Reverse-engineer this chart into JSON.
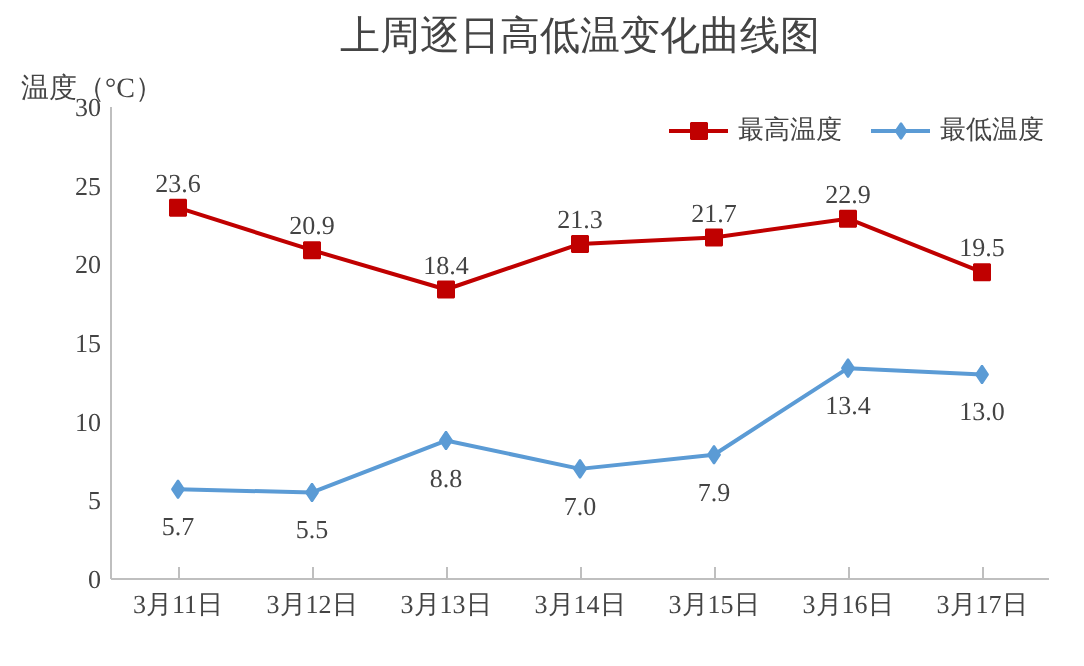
{
  "chart_data": {
    "type": "line",
    "title": "上周逐日高低温变化曲线图",
    "ylabel": "温度（°C）",
    "categories": [
      "3月11日",
      "3月12日",
      "3月13日",
      "3月14日",
      "3月15日",
      "3月16日",
      "3月17日"
    ],
    "series": [
      {
        "name": "最高温度",
        "color": "#c00000",
        "marker": "square",
        "values": [
          23.6,
          20.9,
          18.4,
          21.3,
          21.7,
          22.9,
          19.5
        ],
        "value_labels": [
          "23.6",
          "20.9",
          "18.4",
          "21.3",
          "21.7",
          "22.9",
          "19.5"
        ]
      },
      {
        "name": "最低温度",
        "color": "#5b9bd5",
        "marker": "diamond",
        "values": [
          5.7,
          5.5,
          8.8,
          7.0,
          7.9,
          13.4,
          13.0
        ],
        "value_labels": [
          "5.7",
          "5.5",
          "8.8",
          "7.0",
          "7.9",
          "13.4",
          "13.0"
        ]
      }
    ],
    "ylim": [
      0,
      30
    ],
    "yticks": [
      0,
      5,
      10,
      15,
      20,
      25,
      30
    ],
    "grid": false,
    "legend": "top right"
  }
}
